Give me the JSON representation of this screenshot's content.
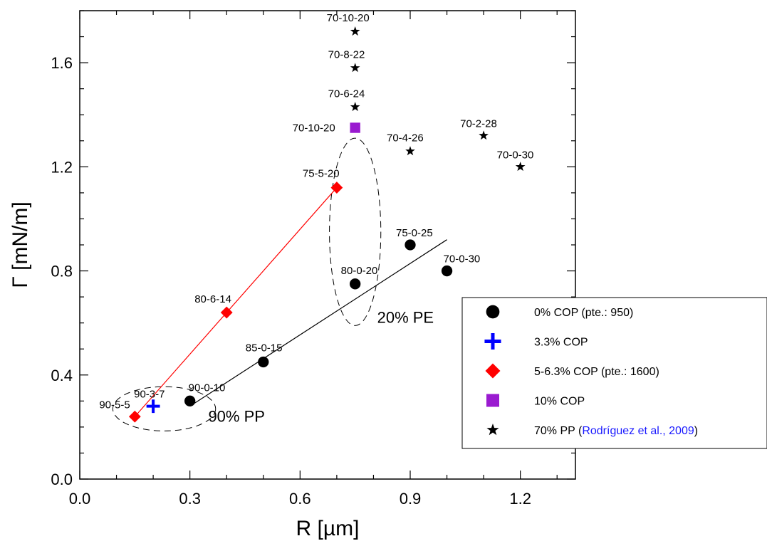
{
  "chart_data": {
    "type": "scatter",
    "xlabel": "R  [µm]",
    "ylabel": "Γ  [mN/m]",
    "xlim": [
      0.0,
      1.35
    ],
    "ylim": [
      0.0,
      1.8
    ],
    "xticks": [
      0.0,
      0.3,
      0.6,
      0.9,
      1.2
    ],
    "yticks": [
      0.0,
      0.4,
      0.8,
      1.2,
      1.6
    ],
    "xtick_labels": [
      "0.0",
      "0.3",
      "0.6",
      "0.9",
      "1.2"
    ],
    "ytick_labels": [
      "0.0",
      "0.4",
      "0.8",
      "1.2",
      "1.6"
    ],
    "legend_position": "right",
    "series": [
      {
        "name": "0% COP  (pte.: 950)",
        "marker": "circle",
        "color": "#000000",
        "points": [
          {
            "x": 0.3,
            "y": 0.3,
            "label": "90-0-10"
          },
          {
            "x": 0.5,
            "y": 0.45,
            "label": "85-0-15"
          },
          {
            "x": 0.75,
            "y": 0.75,
            "label": "80-0-20"
          },
          {
            "x": 0.9,
            "y": 0.9,
            "label": "75-0-25"
          },
          {
            "x": 1.0,
            "y": 0.8,
            "label": "70-0-30"
          }
        ],
        "fit": {
          "x": [
            0.3,
            1.0
          ],
          "y": [
            0.28,
            0.92
          ],
          "color": "#000000"
        }
      },
      {
        "name": "3.3% COP",
        "marker": "plus",
        "color": "#0000ff",
        "points": [
          {
            "x": 0.2,
            "y": 0.28,
            "label": "90-3-7"
          }
        ]
      },
      {
        "name": "5-6.3% COP  (pte.: 1600)",
        "marker": "diamond",
        "color": "#ff0000",
        "points": [
          {
            "x": 0.15,
            "y": 0.24,
            "label": "90-5-5"
          },
          {
            "x": 0.4,
            "y": 0.64,
            "label": "80-6-14"
          },
          {
            "x": 0.7,
            "y": 1.12,
            "label": "75-5-20"
          }
        ],
        "fit": {
          "x": [
            0.15,
            0.7
          ],
          "y": [
            0.24,
            1.12
          ],
          "color": "#ff0000"
        }
      },
      {
        "name": "10% COP",
        "marker": "square",
        "color": "#9a1bd0",
        "points": [
          {
            "x": 0.75,
            "y": 1.35,
            "label": "70-10-20"
          }
        ]
      },
      {
        "name": "70% PP",
        "name_ref": "Rodríguez et al., 2009",
        "name_ref_color": "#1a1aff",
        "name_close": ")",
        "marker": "star",
        "color": "#000000",
        "points": [
          {
            "x": 0.75,
            "y": 1.72,
            "label": "70-10-20"
          },
          {
            "x": 0.75,
            "y": 1.58,
            "label": "70-8-22"
          },
          {
            "x": 0.75,
            "y": 1.43,
            "label": "70-6-24"
          },
          {
            "x": 0.9,
            "y": 1.26,
            "label": "70-4-26"
          },
          {
            "x": 1.1,
            "y": 1.32,
            "label": "70-2-28"
          },
          {
            "x": 1.2,
            "y": 1.2,
            "label": "70-0-30"
          }
        ]
      }
    ],
    "annotations": [
      {
        "text": "90% PP",
        "x": 0.35,
        "y": 0.22
      },
      {
        "text": "20% PE",
        "x": 0.81,
        "y": 0.6
      }
    ],
    "ellipses": [
      {
        "cx": 0.23,
        "cy": 0.27,
        "rx": 0.14,
        "ry": 0.085
      },
      {
        "cx": 0.75,
        "cy": 0.95,
        "rx": 0.07,
        "ry": 0.36
      }
    ]
  }
}
